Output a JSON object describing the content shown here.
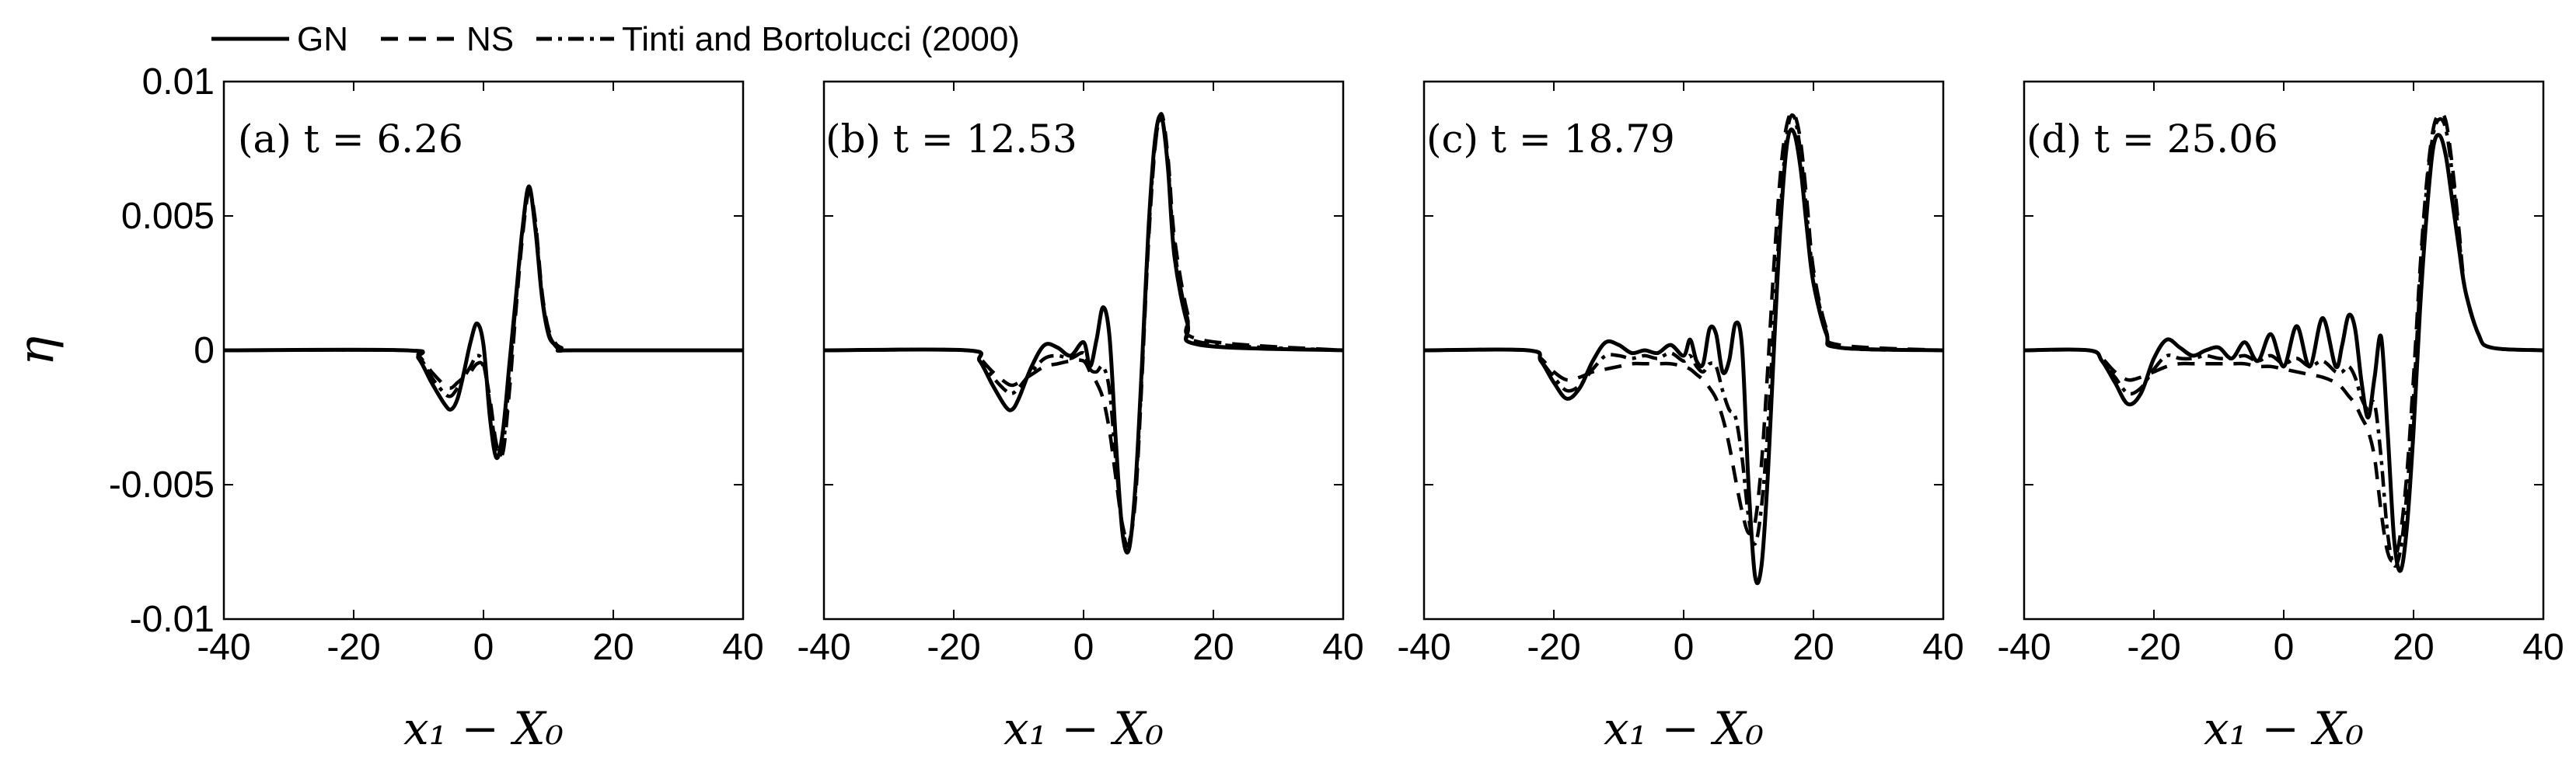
{
  "legend": {
    "entries": [
      {
        "label": "GN",
        "style": "solid"
      },
      {
        "label": "NS",
        "style": "dashed"
      },
      {
        "label": "Tinti and Bortolucci (2000)",
        "style": "dashdot"
      }
    ]
  },
  "ylabel": "η",
  "line_color": "#000000",
  "chart_data": [
    {
      "type": "line",
      "title": "(a) t = 6.26",
      "xlabel": "x₁ − X₀",
      "ylabel": "η",
      "xlim": [
        -40,
        40
      ],
      "ylim": [
        -0.01,
        0.01
      ],
      "xticks": [
        "-40",
        "-20",
        "0",
        "20",
        "40"
      ],
      "yticks": [
        "-0.01",
        "-0.005",
        "0",
        "0.005",
        "0.01"
      ],
      "series": [
        {
          "name": "GN",
          "style": "solid",
          "x": [
            -40,
            -12,
            -10,
            -8,
            -6,
            -5,
            -4,
            -3,
            -2,
            -1,
            0,
            1,
            2,
            3,
            4,
            5,
            6,
            7,
            8,
            9,
            10,
            11,
            12,
            14,
            40
          ],
          "y": [
            0,
            0,
            -0.0003,
            -0.0012,
            -0.002,
            -0.0022,
            -0.0018,
            -0.0008,
            0.0003,
            0.001,
            0.0002,
            -0.0025,
            -0.004,
            -0.003,
            -0.0005,
            0.002,
            0.0045,
            0.0061,
            0.0045,
            0.002,
            0.0006,
            0.0002,
            0,
            0,
            0
          ]
        },
        {
          "name": "NS",
          "style": "dashed",
          "x": [
            -40,
            -12,
            -10,
            -8,
            -6,
            -5,
            -4,
            -3,
            -2,
            -1,
            0,
            1,
            2,
            3,
            4,
            5,
            6,
            7,
            8,
            9,
            10,
            11,
            12,
            14,
            40
          ],
          "y": [
            0,
            0,
            -0.0002,
            -0.0008,
            -0.0013,
            -0.0014,
            -0.0012,
            -0.001,
            -0.0008,
            -0.0005,
            -0.0006,
            -0.0018,
            -0.0035,
            -0.0038,
            -0.0015,
            0.0015,
            0.0042,
            0.0059,
            0.0048,
            0.0022,
            0.0008,
            0.0003,
            0.0001,
            0,
            0
          ]
        },
        {
          "name": "Tinti and Bortolucci (2000)",
          "style": "dashdot",
          "x": [
            -40,
            -12,
            -10,
            -8,
            -6,
            -5,
            -4,
            -3,
            -2,
            -1,
            0,
            1,
            2,
            3,
            4,
            5,
            6,
            7,
            8,
            9,
            10,
            11,
            12,
            14,
            40
          ],
          "y": [
            0,
            0,
            -0.0002,
            -0.001,
            -0.0016,
            -0.0017,
            -0.0014,
            -0.001,
            -0.0006,
            -0.0002,
            -0.0005,
            -0.002,
            -0.0037,
            -0.0036,
            -0.001,
            0.0018,
            0.0044,
            0.006,
            0.0047,
            0.0021,
            0.0007,
            0.0002,
            0,
            0,
            0
          ]
        }
      ]
    },
    {
      "type": "line",
      "title": "(b) t = 12.53",
      "xlabel": "x₁ − X₀",
      "ylabel": "η",
      "xlim": [
        -40,
        40
      ],
      "ylim": [
        -0.01,
        0.01
      ],
      "xticks": [
        "-40",
        "-20",
        "0",
        "20",
        "40"
      ],
      "yticks": [],
      "series": [
        {
          "name": "GN",
          "style": "solid",
          "x": [
            -40,
            -18,
            -16,
            -14,
            -12,
            -11,
            -10,
            -8,
            -6,
            -4,
            -2,
            0,
            1,
            2,
            3,
            4,
            5,
            6,
            7,
            8,
            9,
            10,
            11,
            12,
            13,
            14,
            16,
            18,
            40
          ],
          "y": [
            0,
            0,
            -0.0004,
            -0.0013,
            -0.0021,
            -0.0022,
            -0.0018,
            -0.0006,
            0.0002,
            0.0001,
            -0.0002,
            0.0003,
            -0.0006,
            0.0004,
            0.0016,
            0.0005,
            -0.0035,
            -0.0068,
            -0.0074,
            -0.005,
            -0.0005,
            0.0045,
            0.0078,
            0.0087,
            0.0068,
            0.0035,
            0.001,
            0.0002,
            0
          ]
        },
        {
          "name": "NS",
          "style": "dashed",
          "x": [
            -40,
            -18,
            -16,
            -14,
            -12,
            -11,
            -10,
            -8,
            -6,
            -4,
            -2,
            0,
            1,
            2,
            3,
            4,
            5,
            6,
            7,
            8,
            9,
            10,
            11,
            12,
            13,
            14,
            16,
            18,
            40
          ],
          "y": [
            0,
            0,
            -0.0003,
            -0.0008,
            -0.0012,
            -0.0013,
            -0.0012,
            -0.0009,
            -0.0006,
            -0.0005,
            -0.0004,
            -0.0004,
            -0.0008,
            -0.0012,
            -0.0018,
            -0.003,
            -0.0048,
            -0.0065,
            -0.0071,
            -0.0055,
            -0.001,
            0.004,
            0.0075,
            0.0088,
            0.0072,
            0.0042,
            0.0014,
            0.0004,
            0
          ]
        },
        {
          "name": "Tinti and Bortolucci (2000)",
          "style": "dashdot",
          "x": [
            -40,
            -18,
            -16,
            -14,
            -12,
            -11,
            -10,
            -8,
            -6,
            -4,
            -2,
            0,
            1,
            2,
            3,
            4,
            5,
            6,
            7,
            8,
            9,
            10,
            11,
            12,
            13,
            14,
            16,
            18,
            40
          ],
          "y": [
            0,
            0,
            -0.0004,
            -0.001,
            -0.0015,
            -0.0016,
            -0.0014,
            -0.0008,
            -0.0003,
            -0.0002,
            -0.0003,
            -0.0001,
            -0.0007,
            -0.0008,
            -0.0006,
            -0.0015,
            -0.0042,
            -0.0066,
            -0.0072,
            -0.0052,
            -0.0008,
            0.0042,
            0.0076,
            0.0086,
            0.007,
            0.0038,
            0.0012,
            0.0003,
            0
          ]
        }
      ]
    },
    {
      "type": "line",
      "title": "(c) t = 18.79",
      "xlabel": "x₁ − X₀",
      "ylabel": "η",
      "xlim": [
        -40,
        40
      ],
      "ylim": [
        -0.01,
        0.01
      ],
      "xticks": [
        "-40",
        "-20",
        "0",
        "20",
        "40"
      ],
      "yticks": [],
      "series": [
        {
          "name": "GN",
          "style": "solid",
          "x": [
            -40,
            -24,
            -22,
            -20,
            -18,
            -16,
            -14,
            -12,
            -10,
            -8,
            -6,
            -4,
            -2,
            0,
            1,
            2,
            3,
            4,
            5,
            6,
            7,
            8,
            9,
            10,
            11,
            12,
            13,
            14,
            15,
            16,
            17,
            18,
            19,
            20,
            22,
            24,
            40
          ],
          "y": [
            0,
            0,
            -0.0004,
            -0.0012,
            -0.0018,
            -0.0014,
            -0.0004,
            0.0003,
            0.0002,
            -0.0001,
            0,
            -0.0001,
            0.0002,
            -0.0002,
            0.0004,
            -0.0004,
            -0.0005,
            0.0008,
            0.0006,
            -0.0008,
            -0.0004,
            0.001,
            0.0001,
            -0.005,
            -0.0084,
            -0.008,
            -0.0045,
            0.0005,
            0.005,
            0.0078,
            0.0081,
            0.0068,
            0.0045,
            0.0025,
            0.0006,
            0.0001,
            0
          ]
        },
        {
          "name": "NS",
          "style": "dashed",
          "x": [
            -40,
            -24,
            -22,
            -20,
            -18,
            -16,
            -14,
            -12,
            -10,
            -8,
            -6,
            -4,
            -2,
            0,
            1,
            2,
            3,
            4,
            5,
            6,
            7,
            8,
            9,
            10,
            11,
            12,
            13,
            14,
            15,
            16,
            17,
            18,
            19,
            20,
            22,
            24,
            40
          ],
          "y": [
            0,
            0,
            -0.0003,
            -0.0008,
            -0.0011,
            -0.001,
            -0.0008,
            -0.0007,
            -0.0006,
            -0.0005,
            -0.0005,
            -0.0005,
            -0.0005,
            -0.0006,
            -0.0007,
            -0.0009,
            -0.0011,
            -0.0014,
            -0.0018,
            -0.0025,
            -0.0035,
            -0.0048,
            -0.006,
            -0.0068,
            -0.0064,
            -0.0042,
            -0.0005,
            0.0035,
            0.0068,
            0.0085,
            0.0088,
            0.0078,
            0.0055,
            0.003,
            0.0008,
            0.0002,
            0
          ]
        },
        {
          "name": "Tinti and Bortolucci (2000)",
          "style": "dashdot",
          "x": [
            -40,
            -24,
            -22,
            -20,
            -18,
            -16,
            -14,
            -12,
            -10,
            -8,
            -6,
            -4,
            -2,
            0,
            1,
            2,
            3,
            4,
            5,
            6,
            7,
            8,
            9,
            10,
            11,
            12,
            13,
            14,
            15,
            16,
            17,
            18,
            19,
            20,
            22,
            24,
            40
          ],
          "y": [
            0,
            0,
            -0.0004,
            -0.001,
            -0.0015,
            -0.0013,
            -0.0007,
            -0.0002,
            -0.0002,
            -0.0003,
            -0.0002,
            -0.0003,
            -0.0001,
            -0.0004,
            -0.0002,
            -0.0006,
            -0.0008,
            -0.0005,
            -0.0006,
            -0.0015,
            -0.0022,
            -0.0025,
            -0.004,
            -0.0062,
            -0.0072,
            -0.0058,
            -0.0028,
            0.0015,
            0.0055,
            0.0082,
            0.0087,
            0.0074,
            0.005,
            0.0028,
            0.0007,
            0.0001,
            0
          ]
        }
      ]
    },
    {
      "type": "line",
      "title": "(d) t = 25.06",
      "xlabel": "x₁ − X₀",
      "ylabel": "η",
      "xlim": [
        -40,
        40
      ],
      "ylim": [
        -0.01,
        0.01
      ],
      "xticks": [
        "-40",
        "-20",
        "0",
        "20",
        "40"
      ],
      "yticks": [],
      "series": [
        {
          "name": "GN",
          "style": "solid",
          "x": [
            -40,
            -30,
            -28,
            -26,
            -24,
            -22,
            -20,
            -18,
            -16,
            -14,
            -12,
            -10,
            -8,
            -6,
            -4,
            -2,
            0,
            2,
            4,
            6,
            8,
            9,
            10,
            11,
            12,
            13,
            14,
            15,
            16,
            17,
            18,
            19,
            20,
            21,
            22,
            23,
            24,
            25,
            26,
            27,
            28,
            30,
            32,
            40
          ],
          "y": [
            0,
            0,
            -0.0004,
            -0.0012,
            -0.002,
            -0.0016,
            -0.0003,
            0.0004,
            0.0001,
            -0.0002,
            0,
            0.0001,
            -0.0003,
            0.0003,
            -0.0004,
            0.0006,
            -0.0006,
            0.0009,
            -0.0006,
            0.0012,
            -0.0006,
            0.0002,
            0.0013,
            0.0008,
            -0.0012,
            -0.0025,
            -0.001,
            0.0005,
            -0.003,
            -0.007,
            -0.0082,
            -0.0065,
            -0.003,
            0.0015,
            0.005,
            0.0075,
            0.008,
            0.0072,
            0.0055,
            0.0038,
            0.0022,
            0.0006,
            0.0001,
            0
          ]
        },
        {
          "name": "NS",
          "style": "dashed",
          "x": [
            -40,
            -30,
            -28,
            -26,
            -24,
            -22,
            -20,
            -18,
            -16,
            -14,
            -12,
            -10,
            -8,
            -6,
            -4,
            -2,
            0,
            2,
            4,
            6,
            8,
            9,
            10,
            11,
            12,
            13,
            14,
            15,
            16,
            17,
            18,
            19,
            20,
            21,
            22,
            23,
            24,
            25,
            26,
            27,
            28,
            30,
            32,
            40
          ],
          "y": [
            0,
            0,
            -0.0003,
            -0.0008,
            -0.0011,
            -0.001,
            -0.0008,
            -0.0006,
            -0.0005,
            -0.0005,
            -0.0005,
            -0.0005,
            -0.0005,
            -0.0005,
            -0.0006,
            -0.0006,
            -0.0007,
            -0.0008,
            -0.0009,
            -0.001,
            -0.0012,
            -0.0014,
            -0.0017,
            -0.002,
            -0.0025,
            -0.003,
            -0.004,
            -0.006,
            -0.0075,
            -0.0078,
            -0.0068,
            -0.0045,
            -0.001,
            0.003,
            0.0062,
            0.0082,
            0.0088,
            0.0085,
            0.0068,
            0.0045,
            0.0022,
            0.0006,
            0.0001,
            0
          ]
        },
        {
          "name": "Tinti and Bortolucci (2000)",
          "style": "dashdot",
          "x": [
            -40,
            -30,
            -28,
            -26,
            -24,
            -22,
            -20,
            -18,
            -16,
            -14,
            -12,
            -10,
            -8,
            -6,
            -4,
            -2,
            0,
            2,
            4,
            6,
            8,
            9,
            10,
            11,
            12,
            13,
            14,
            15,
            16,
            17,
            18,
            19,
            20,
            21,
            22,
            23,
            24,
            25,
            26,
            27,
            28,
            30,
            32,
            40
          ],
          "y": [
            0,
            0,
            -0.0004,
            -0.001,
            -0.0016,
            -0.0014,
            -0.0007,
            -0.0002,
            -0.0003,
            -0.0003,
            -0.0002,
            -0.0003,
            -0.0003,
            -0.0002,
            -0.0004,
            -0.0002,
            -0.0005,
            -0.0003,
            -0.0006,
            -0.0004,
            -0.0008,
            -0.0008,
            -0.0006,
            -0.001,
            -0.0018,
            -0.0022,
            -0.002,
            -0.004,
            -0.0068,
            -0.008,
            -0.0074,
            -0.0052,
            -0.0018,
            0.0025,
            0.006,
            0.008,
            0.0086,
            0.0082,
            0.0065,
            0.0042,
            0.0022,
            0.0006,
            0.0001,
            0
          ]
        }
      ]
    }
  ]
}
